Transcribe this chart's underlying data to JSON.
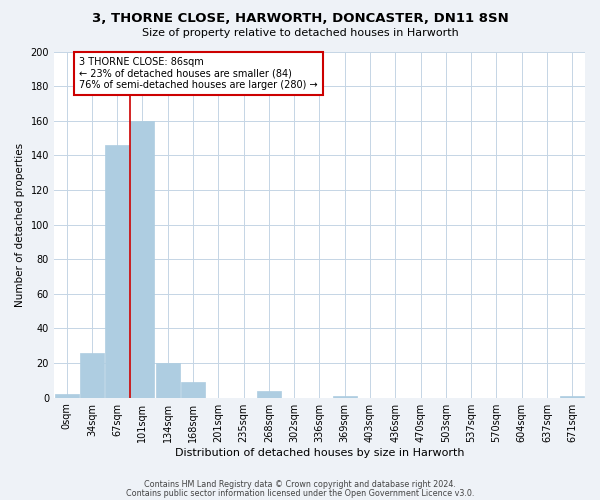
{
  "title": "3, THORNE CLOSE, HARWORTH, DONCASTER, DN11 8SN",
  "subtitle": "Size of property relative to detached houses in Harworth",
  "xlabel": "Distribution of detached houses by size in Harworth",
  "ylabel": "Number of detached properties",
  "bin_labels": [
    "0sqm",
    "34sqm",
    "67sqm",
    "101sqm",
    "134sqm",
    "168sqm",
    "201sqm",
    "235sqm",
    "268sqm",
    "302sqm",
    "336sqm",
    "369sqm",
    "403sqm",
    "436sqm",
    "470sqm",
    "503sqm",
    "537sqm",
    "570sqm",
    "604sqm",
    "637sqm",
    "671sqm"
  ],
  "bar_values": [
    2,
    26,
    146,
    160,
    20,
    9,
    0,
    0,
    4,
    0,
    0,
    1,
    0,
    0,
    0,
    0,
    0,
    0,
    0,
    0,
    1
  ],
  "bar_color": "#aecde1",
  "bar_edgecolor": "#aecde1",
  "ylim": [
    0,
    200
  ],
  "yticks": [
    0,
    20,
    40,
    60,
    80,
    100,
    120,
    140,
    160,
    180,
    200
  ],
  "property_line_x": 2.5,
  "property_line_color": "#cc0000",
  "annotation_text": "3 THORNE CLOSE: 86sqm\n← 23% of detached houses are smaller (84)\n76% of semi-detached houses are larger (280) →",
  "annotation_box_color": "#cc0000",
  "footer_line1": "Contains HM Land Registry data © Crown copyright and database right 2024.",
  "footer_line2": "Contains public sector information licensed under the Open Government Licence v3.0.",
  "bg_color": "#eef2f7",
  "plot_bg_color": "#ffffff",
  "grid_color": "#c5d5e5"
}
